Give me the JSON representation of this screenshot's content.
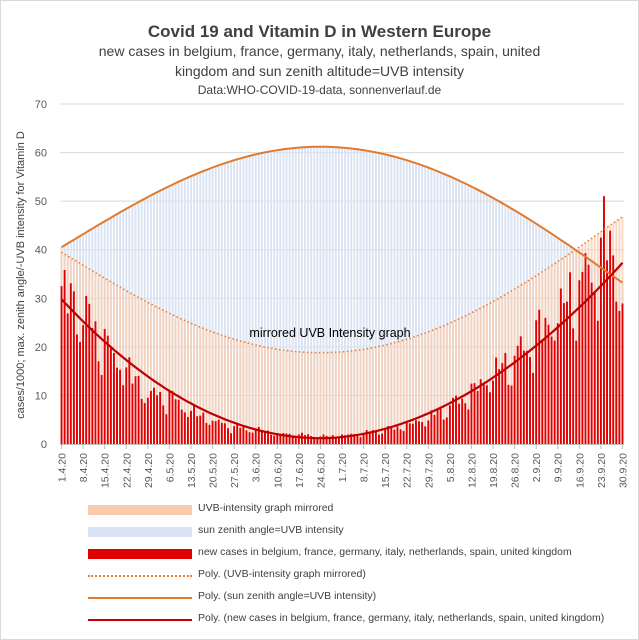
{
  "header": {
    "title": "Covid 19 and Vitamin D in Western Europe",
    "subtitle_line1": "new cases in belgium, france, germany, italy, netherlands, spain, united",
    "subtitle_line2": "kingdom and sun zenith altitude=UVB intensity",
    "source": "Data:WHO-COVID-19-data, sonnenverlauf.de"
  },
  "chart_data": {
    "type": "bar",
    "title": "Covid 19 and Vitamin D in Western Europe",
    "ylabel": "cases/1000; max. zenith angle/-UVB intensity for Vitamin D",
    "xlabel": "",
    "ylim": [
      0,
      70
    ],
    "yticks": [
      0,
      10,
      20,
      30,
      40,
      50,
      60,
      70
    ],
    "x_start": "1.4.20",
    "x_end": "30.9.20",
    "num_days": 183,
    "xticks": [
      "1.4.20",
      "8.4.20",
      "15.4.20",
      "22.4.20",
      "29.4.20",
      "6.5.20",
      "13.5.20",
      "20.5.20",
      "27.5.20",
      "3.6.20",
      "10.6.20",
      "17.6.20",
      "24.6.20",
      "1.7.20",
      "8.7.20",
      "15.7.20",
      "22.7.20",
      "29.7.20",
      "5.8.20",
      "12.8.20",
      "19.8.20",
      "26.8.20",
      "2.9.20",
      "9.9.20",
      "16.9.20",
      "23.9.20",
      "30.9.20"
    ],
    "annotation": "mirrored UVB Intensity graph",
    "zenith_model": {
      "peak": 61.2,
      "peak_day": 84,
      "start": 40.5,
      "end": 33.2,
      "description": "daily sun zenith angle, rising from ~40.5 on 1.4.20 to ~61.2 at the solstice (24.6.20) and falling to ~33 by 30.9.20"
    },
    "mirrored_model": {
      "description": "UVB-intensity graph mirrored: 80 minus zenith angle, ~39.5 on 1.4.20, minimum ~18.8 at 24.6.20, ~46.8 on 30.9.20"
    },
    "cases_keypoints": [
      {
        "day": 0,
        "value": 32.5
      },
      {
        "day": 2,
        "value": 31.0
      },
      {
        "day": 7,
        "value": 28.0
      },
      {
        "day": 14,
        "value": 21.0
      },
      {
        "day": 21,
        "value": 16.0
      },
      {
        "day": 28,
        "value": 10.5
      },
      {
        "day": 35,
        "value": 10.0
      },
      {
        "day": 42,
        "value": 7.0
      },
      {
        "day": 49,
        "value": 5.0
      },
      {
        "day": 56,
        "value": 3.5
      },
      {
        "day": 63,
        "value": 3.0
      },
      {
        "day": 70,
        "value": 2.2
      },
      {
        "day": 77,
        "value": 2.0
      },
      {
        "day": 84,
        "value": 1.6
      },
      {
        "day": 91,
        "value": 1.8
      },
      {
        "day": 98,
        "value": 2.3
      },
      {
        "day": 105,
        "value": 3.0
      },
      {
        "day": 112,
        "value": 4.0
      },
      {
        "day": 119,
        "value": 5.5
      },
      {
        "day": 126,
        "value": 8.0
      },
      {
        "day": 133,
        "value": 11.0
      },
      {
        "day": 140,
        "value": 15.0
      },
      {
        "day": 147,
        "value": 18.0
      },
      {
        "day": 154,
        "value": 23.0
      },
      {
        "day": 161,
        "value": 28.0
      },
      {
        "day": 168,
        "value": 33.0
      },
      {
        "day": 174,
        "value": 39.0
      },
      {
        "day": 178,
        "value": 43.5
      },
      {
        "day": 182,
        "value": 31.0
      }
    ],
    "cases_trend": {
      "start": 29.8,
      "min": 1.2,
      "min_day": 84,
      "end": 37.3,
      "description": "polynomial trend of new cases"
    },
    "series": [
      {
        "name": "UVB-intensity graph mirrored",
        "kind": "bar",
        "color": "#f8cbad"
      },
      {
        "name": "sun zenith angle=UVB intensity",
        "kind": "bar",
        "color": "#dae3f3"
      },
      {
        "name": "new cases in belgium, france, germany, italy, netherlands, spain, united kingdom",
        "kind": "bar",
        "color": "#c00000"
      },
      {
        "name": "Poly. (UVB-intensity graph mirrored)",
        "kind": "trend",
        "color": "#ed7d31"
      },
      {
        "name": "Poly. (sun zenith angle=UVB intensity)",
        "kind": "trend",
        "color": "#e07a2f"
      },
      {
        "name": "Poly. (new cases in belgium, france, germany, italy, netherlands, spain, united kingdom)",
        "kind": "trend",
        "color": "#c00000"
      }
    ]
  },
  "legend": {
    "items": [
      {
        "label": "UVB-intensity graph mirrored"
      },
      {
        "label": "sun zenith angle=UVB intensity"
      },
      {
        "label": "new cases in belgium, france, germany, italy, netherlands, spain, united kingdom"
      },
      {
        "label": "Poly. (UVB-intensity graph mirrored)"
      },
      {
        "label": "Poly. (sun zenith angle=UVB intensity)"
      },
      {
        "label": "Poly. (new cases in belgium, france, germany, italy, netherlands, spain, united kingdom)"
      }
    ]
  }
}
